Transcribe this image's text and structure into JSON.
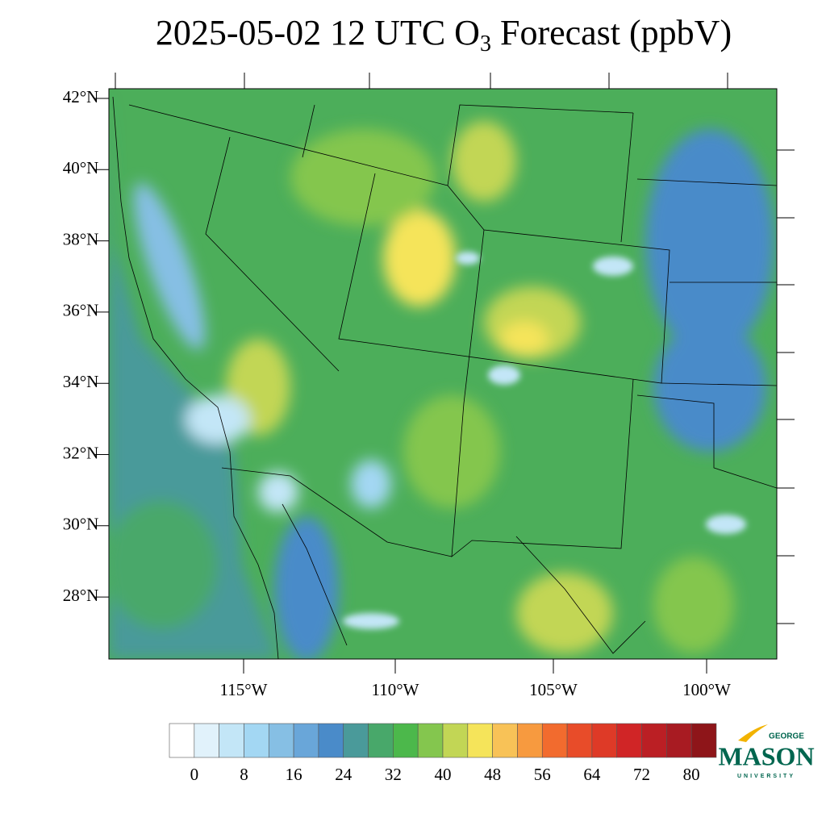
{
  "title": {
    "main": "2025-05-02 12 UTC O",
    "subscript": "3",
    "rest": " Forecast (ppbV)"
  },
  "map": {
    "lat_labels": [
      "42°N",
      "40°N",
      "38°N",
      "36°N",
      "34°N",
      "32°N",
      "30°N",
      "28°N"
    ],
    "lon_labels": [
      "115°W",
      "110°W",
      "105°W",
      "100°W"
    ]
  },
  "colorbar": {
    "colors": [
      "#ffffff",
      "#e1f2fb",
      "#c3e6f7",
      "#a3d7f3",
      "#86bfe4",
      "#69a6d9",
      "#4a8bc9",
      "#4a9a9a",
      "#48a86a",
      "#4cb84b",
      "#84c64e",
      "#c2d655",
      "#f5e45a",
      "#f8c257",
      "#f79a3f",
      "#f26b2e",
      "#e84c29",
      "#de3a27",
      "#d02526",
      "#bb1f24",
      "#a81b22",
      "#8e1519"
    ],
    "labels": [
      0,
      8,
      16,
      24,
      32,
      40,
      48,
      56,
      64,
      72,
      80
    ]
  },
  "logo": {
    "top": "GEORGE",
    "name": "MASON",
    "bottom": "UNIVERSITY"
  }
}
